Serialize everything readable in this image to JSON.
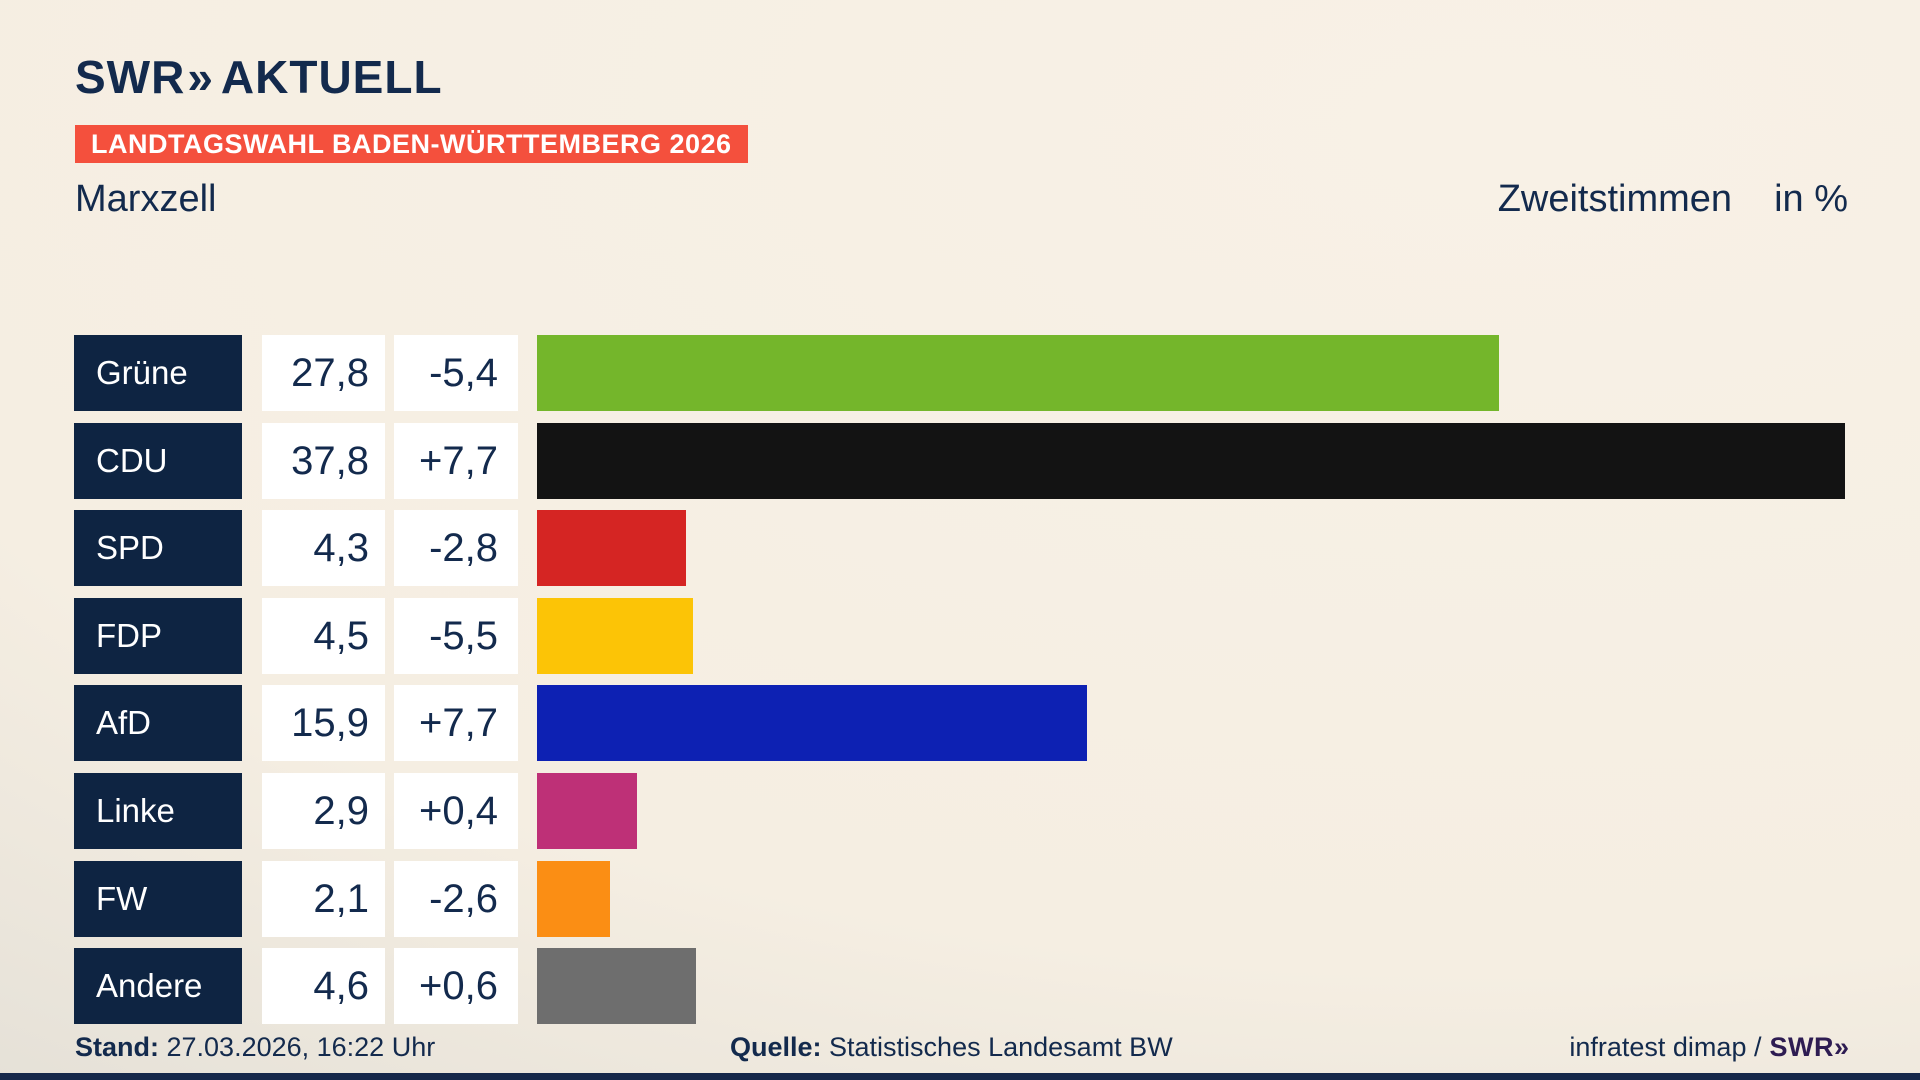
{
  "header": {
    "logo_text": "SWR",
    "logo_chevrons": "»",
    "logo_suffix": "AKTUELL",
    "badge": "LANDTAGSWAHL BADEN-WÜRTTEMBERG 2026"
  },
  "subtitle": {
    "location": "Marxzell",
    "measure": "Zweitstimmen",
    "unit": "in %"
  },
  "chart_data": {
    "type": "bar",
    "title": "Marxzell — Zweitstimmen in %",
    "orientation": "horizontal",
    "categories": [
      "Grüne",
      "CDU",
      "SPD",
      "FDP",
      "AfD",
      "Linke",
      "FW",
      "Andere"
    ],
    "values": [
      27.8,
      37.8,
      4.3,
      4.5,
      15.9,
      2.9,
      2.1,
      4.6
    ],
    "value_labels": [
      "27,8",
      "37,8",
      "4,3",
      "4,5",
      "15,9",
      "2,9",
      "2,1",
      "4,6"
    ],
    "diff_labels": [
      "-5,4",
      "+7,7",
      "-2,8",
      "-5,5",
      "+7,7",
      "+0,4",
      "-2,6",
      "+0,6"
    ],
    "bar_colors": [
      "#74b62b",
      "#131313",
      "#d52523",
      "#fcc406",
      "#0d21b3",
      "#be3077",
      "#fb8e14",
      "#6e6e6e"
    ],
    "xlim": [
      0,
      37.8
    ],
    "grid": false,
    "legend": false
  },
  "footer": {
    "stand_label": "Stand:",
    "stand_value": " 27.03.2026, 16:22 Uhr",
    "quelle_label": "Quelle:",
    "quelle_value": " Statistisches Landesamt BW",
    "credit_text": "infratest dimap /",
    "credit_logo_text": "SWR",
    "credit_logo_chevrons": "»"
  },
  "colors": {
    "background_cream": "#f5eee2",
    "background_shadow": "#cecbc4",
    "navy": "#132a4d",
    "label_box_navy": "#0e2442",
    "badge_red": "#f4503d",
    "value_box_white": "#ffffff",
    "credit_logo_purple": "#2e1c52",
    "bottom_strip_navy": "#16284a"
  }
}
